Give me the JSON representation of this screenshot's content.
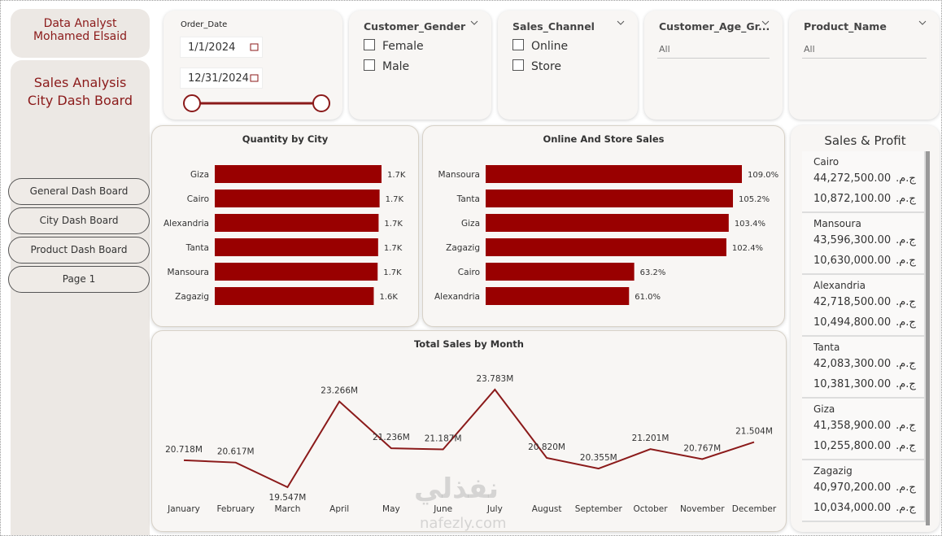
{
  "sidebar": {
    "author": [
      "Data Analyst",
      "Mohamed Elsaid"
    ],
    "title": [
      "Sales Analysis",
      "City Dash Board"
    ],
    "nav": [
      "General Dash Board",
      "City Dash Board",
      "Product Dash Board",
      "Page 1"
    ]
  },
  "filters": {
    "order_date": {
      "label": "Order_Date",
      "start": "1/1/2024",
      "end": "12/31/2024"
    },
    "gender": {
      "label": "Customer_Gender",
      "options": [
        "Female",
        "Male"
      ]
    },
    "channel": {
      "label": "Sales_Channel",
      "options": [
        "Online",
        "Store"
      ]
    },
    "age_group": {
      "label": "Customer_Age_Gr...",
      "value": "All"
    },
    "product": {
      "label": "Product_Name",
      "value": "All"
    }
  },
  "sales_profit": {
    "title": "Sales & Profit",
    "currency": "ج.م.",
    "rows": [
      {
        "city": "Cairo",
        "sales": "44,272,500.00",
        "profit": "10,872,100.00"
      },
      {
        "city": "Mansoura",
        "sales": "43,596,300.00",
        "profit": "10,630,000.00"
      },
      {
        "city": "Alexandria",
        "sales": "42,718,500.00",
        "profit": "10,494,800.00"
      },
      {
        "city": "Tanta",
        "sales": "42,083,300.00",
        "profit": "10,381,300.00"
      },
      {
        "city": "Giza",
        "sales": "41,358,900.00",
        "profit": "10,255,800.00"
      },
      {
        "city": "Zagazig",
        "sales": "40,970,200.00",
        "profit": "10,034,000.00"
      }
    ]
  },
  "watermark": [
    "نفذلي",
    "nafezly.com"
  ],
  "chart_data": [
    {
      "type": "hbar",
      "title": "Quantity by City",
      "color": "#990000",
      "categories": [
        "Giza",
        "Cairo",
        "Alexandria",
        "Tanta",
        "Mansoura",
        "Zagazig"
      ],
      "values": [
        1720,
        1700,
        1690,
        1685,
        1680,
        1640
      ],
      "value_labels": [
        "1.7K",
        "1.7K",
        "1.7K",
        "1.7K",
        "1.7K",
        "1.6K"
      ]
    },
    {
      "type": "hbar",
      "title": "Online And Store Sales",
      "color": "#990000",
      "categories": [
        "Mansoura",
        "Tanta",
        "Giza",
        "Zagazig",
        "Cairo",
        "Alexandria"
      ],
      "values": [
        109.0,
        105.2,
        103.4,
        102.4,
        63.2,
        61.0
      ],
      "value_labels": [
        "109.0%",
        "105.2%",
        "103.4%",
        "102.4%",
        "63.2%",
        "61.0%"
      ]
    },
    {
      "type": "line",
      "title": "Total Sales by Month",
      "color": "#8b1a1a",
      "categories": [
        "January",
        "February",
        "March",
        "April",
        "May",
        "June",
        "July",
        "August",
        "September",
        "October",
        "November",
        "December"
      ],
      "values": [
        20.718,
        20.617,
        19.547,
        23.266,
        21.236,
        21.187,
        23.783,
        20.82,
        20.355,
        21.201,
        20.767,
        21.504
      ],
      "value_labels": [
        "20.718M",
        "20.617M",
        "19.547M",
        "23.266M",
        "21.236M",
        "21.187M",
        "23.783M",
        "20.820M",
        "20.355M",
        "21.201M",
        "20.767M",
        "21.504M"
      ]
    }
  ]
}
